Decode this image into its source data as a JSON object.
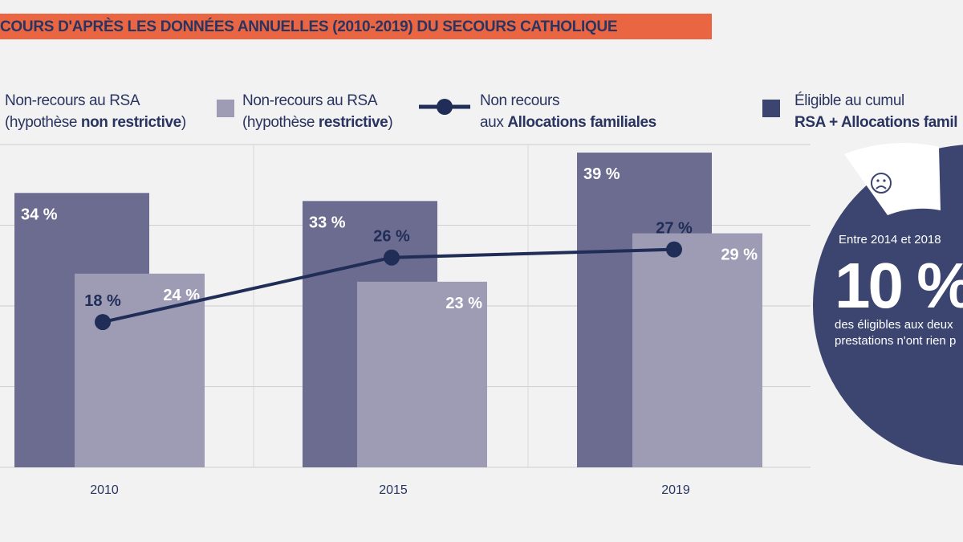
{
  "title": "COURS D'APRÈS LES DONNÉES ANNUELLES (2010-2019) DU SECOURS CATHOLIQUE",
  "legend": [
    {
      "line1": "Non-recours au RSA",
      "line2a": "(hypothèse ",
      "line2b": "non restrictive",
      "line2c": ")"
    },
    {
      "line1": "Non-recours au RSA",
      "line2a": "(hypothèse ",
      "line2b": "restrictive",
      "line2c": ")"
    },
    {
      "line1": "Non recours",
      "line2a": "aux ",
      "line2b": "Allocations familiales",
      "line2c": ""
    },
    {
      "line1": "Éligible au cumul",
      "line2a": "",
      "line2b": "RSA + Allocations famil",
      "line2c": ""
    }
  ],
  "side": {
    "icon": "sad-face-icon",
    "period": "Entre 2014 et 2018",
    "big": "10 %",
    "line1": "des éligibles aux deux",
    "line2": "prestations n'ont rien p"
  },
  "colors": {
    "banner": "#ea6542",
    "dark_bar": "#6c6c90",
    "light_bar": "#9e9bb5",
    "line": "#1f2d57",
    "circle": "#3b4570",
    "text": "#2a3460"
  },
  "chart_data": {
    "type": "bar",
    "categories": [
      "2010",
      "2015",
      "2019"
    ],
    "ylim": [
      0,
      40
    ],
    "grid": true,
    "legend_position": "top",
    "series": [
      {
        "name": "Non-recours au RSA (hypothèse non restrictive)",
        "type": "bar",
        "values": [
          34,
          33,
          39
        ],
        "labels": [
          "34 %",
          "33 %",
          "39 %"
        ]
      },
      {
        "name": "Non-recours au RSA (hypothèse restrictive)",
        "type": "bar",
        "values": [
          24,
          23,
          29
        ],
        "labels": [
          "24 %",
          "23 %",
          "29 %"
        ]
      },
      {
        "name": "Non recours aux Allocations familiales",
        "type": "line",
        "values": [
          18,
          26,
          27
        ],
        "labels": [
          "18 %",
          "26 %",
          "27 %"
        ]
      }
    ]
  }
}
